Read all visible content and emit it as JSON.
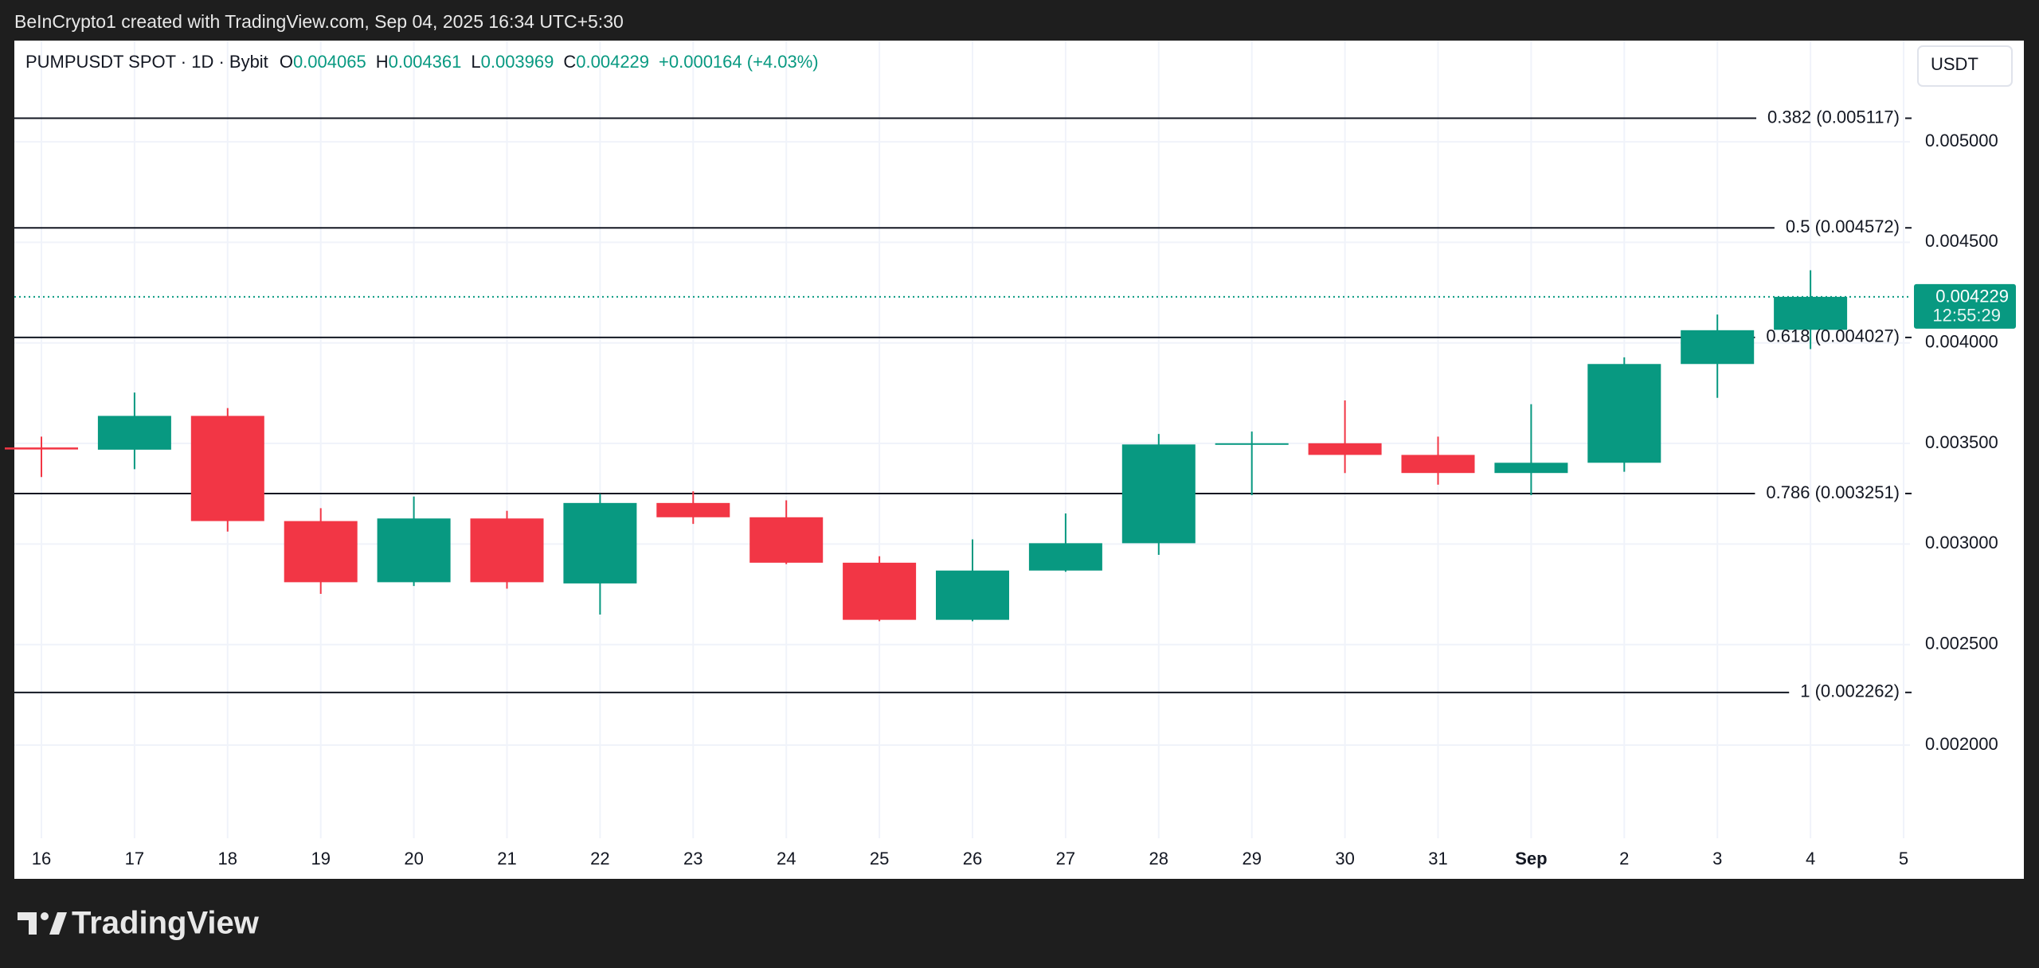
{
  "top_caption": "BeInCrypto1 created with TradingView.com, Sep 04, 2025 16:34 UTC+5:30",
  "footer_brand": "TradingView",
  "chart_data": {
    "type": "candlestick",
    "symbol": "PUMPUSDT SPOT · 1D · Bybit",
    "ohlc_header": [
      {
        "key": "O",
        "value": "0.004065"
      },
      {
        "key": "H",
        "value": "0.004361"
      },
      {
        "key": "L",
        "value": "0.003969"
      },
      {
        "key": "C",
        "value": "0.004229"
      }
    ],
    "change": "+0.000164 (+4.03%)",
    "currency": "USDT",
    "price_label": "0.004229",
    "countdown": "12:55:29",
    "categories": [
      "16",
      "17",
      "18",
      "19",
      "20",
      "21",
      "22",
      "23",
      "24",
      "25",
      "26",
      "27",
      "28",
      "29",
      "30",
      "31",
      "Sep",
      "2",
      "3",
      "4",
      "5"
    ],
    "open": [
      0.00348,
      0.003469,
      0.003637,
      0.003114,
      0.00281,
      0.003127,
      0.002804,
      0.003204,
      0.003133,
      0.002907,
      0.002623,
      0.002868,
      0.003004,
      0.003495,
      0.003501,
      0.003443,
      0.003353,
      0.003404,
      0.003895,
      0.004065,
      null
    ],
    "high": [
      0.003534,
      0.003753,
      0.003676,
      0.003178,
      0.003236,
      0.003165,
      0.003249,
      0.003262,
      0.003217,
      0.002939,
      0.003023,
      0.003152,
      0.003547,
      0.003559,
      0.003714,
      0.003534,
      0.003695,
      0.003928,
      0.004141,
      0.004361,
      null
    ],
    "low": [
      0.003333,
      0.003372,
      0.003062,
      0.002752,
      0.002791,
      0.002778,
      0.002649,
      0.0031,
      0.0029,
      0.002616,
      0.002616,
      0.002862,
      0.002946,
      0.003243,
      0.003353,
      0.003295,
      0.003243,
      0.003359,
      0.003727,
      0.003969,
      null
    ],
    "close": [
      0.00347,
      0.003637,
      0.003114,
      0.00281,
      0.003127,
      0.00281,
      0.003204,
      0.003133,
      0.002907,
      0.002623,
      0.002868,
      0.003004,
      0.003495,
      0.003501,
      0.003443,
      0.003353,
      0.003404,
      0.003895,
      0.004063,
      0.004229,
      null
    ],
    "up_color": "#089981",
    "down_color": "#f23645",
    "ylim": [
      0.001537,
      0.005503
    ],
    "yticks": [
      {
        "value": 0.002,
        "label": "0.002000"
      },
      {
        "value": 0.0025,
        "label": "0.002500"
      },
      {
        "value": 0.003,
        "label": "0.003000"
      },
      {
        "value": 0.0035,
        "label": "0.003500"
      },
      {
        "value": 0.004,
        "label": "0.004000"
      },
      {
        "value": 0.0045,
        "label": "0.004500"
      },
      {
        "value": 0.005,
        "label": "0.005000"
      }
    ],
    "grid": true,
    "fib_levels": [
      {
        "price": 0.005117,
        "label": "0.382 (0.005117)"
      },
      {
        "price": 0.004572,
        "label": "0.5 (0.004572)"
      },
      {
        "price": 0.004027,
        "label": "0.618 (0.004027)"
      },
      {
        "price": 0.003251,
        "label": "0.786 (0.003251)"
      },
      {
        "price": 0.002262,
        "label": "1 (0.002262)"
      }
    ]
  }
}
